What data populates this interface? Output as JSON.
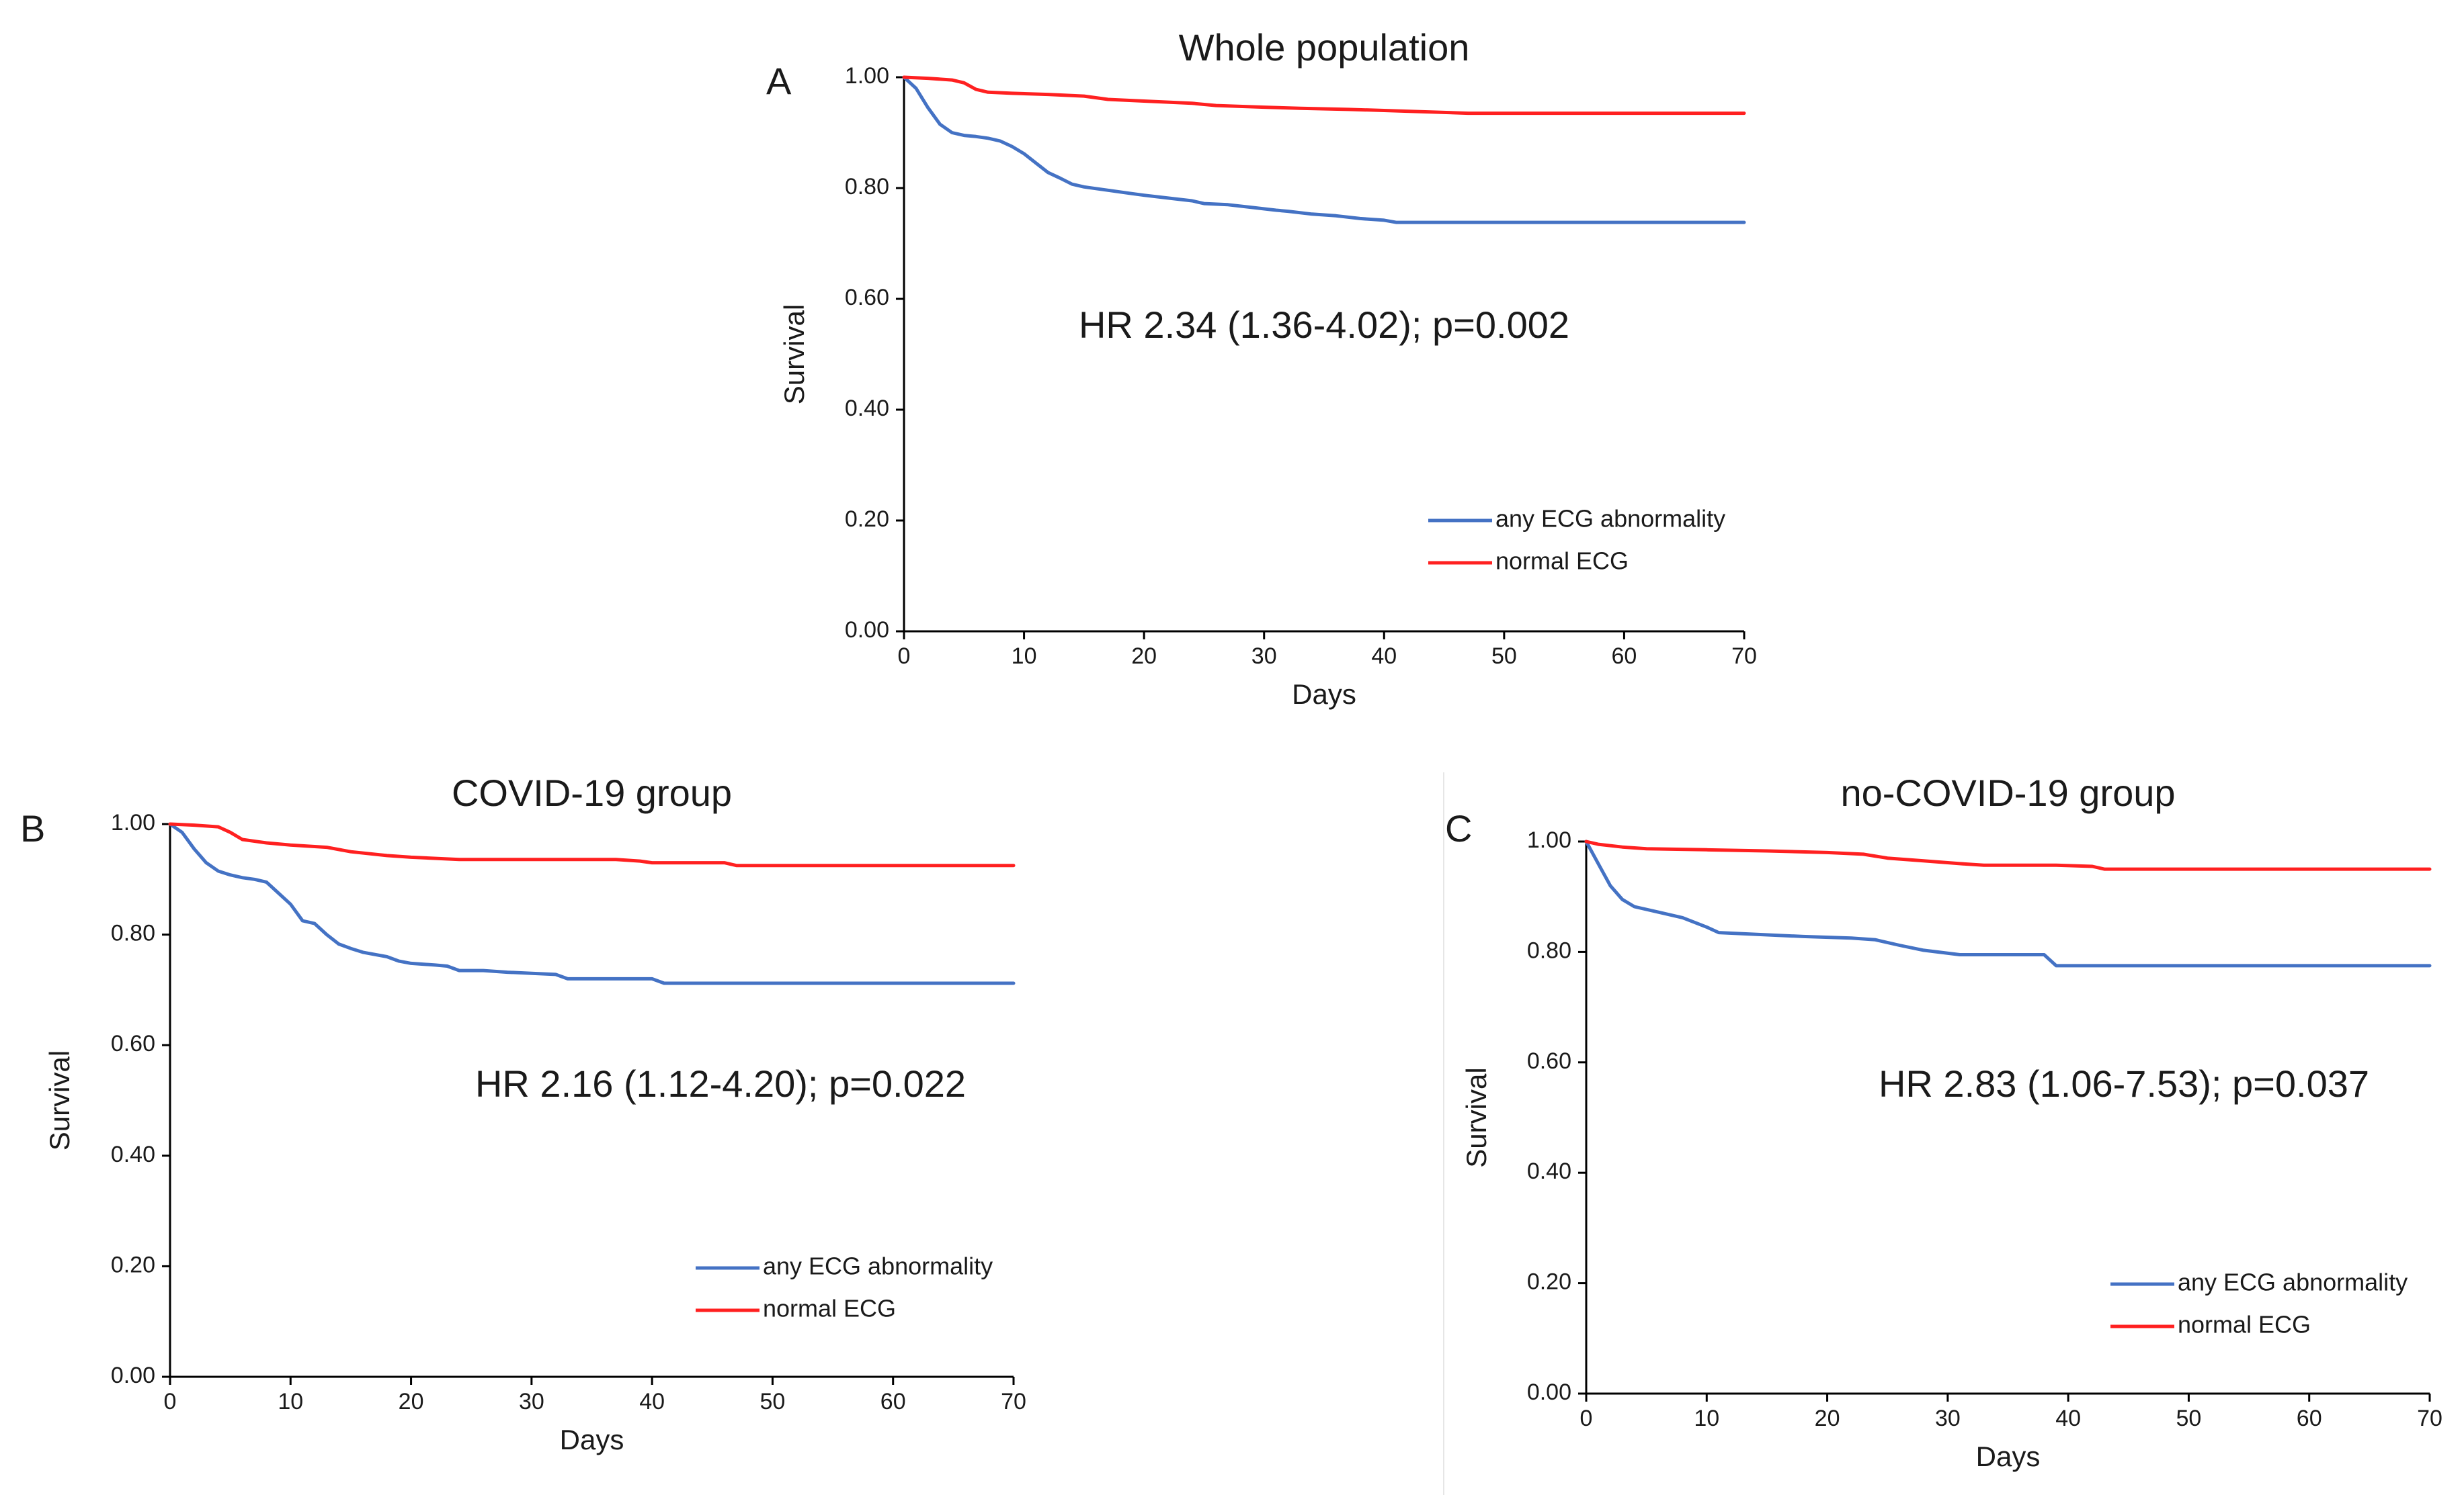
{
  "chart_data": [
    {
      "panel": "A",
      "type": "line",
      "title": "Whole population",
      "xlabel": "Days",
      "ylabel": "Survival",
      "xlim": [
        0,
        70
      ],
      "ylim": [
        0,
        1
      ],
      "xticks": [
        "0",
        "10",
        "20",
        "30",
        "40",
        "50",
        "60",
        "70"
      ],
      "yticks": [
        "0.00",
        "0.20",
        "0.40",
        "0.60",
        "0.80",
        "1.00"
      ],
      "annotation": "HR 2.34 (1.36-4.02); p=0.002",
      "legend_position": "bottom-right",
      "series": [
        {
          "name": "any ECG abnormality",
          "color": "#4472C4",
          "x": [
            0,
            1,
            2,
            3,
            4,
            5,
            6,
            7,
            8,
            9,
            10,
            11,
            12,
            13,
            14,
            15,
            16,
            17,
            18,
            19,
            20,
            22,
            24,
            25,
            27,
            29,
            31,
            32,
            34,
            36,
            38,
            40,
            41,
            43,
            45,
            48,
            50,
            55,
            60,
            65,
            70
          ],
          "y": [
            1.0,
            0.98,
            0.945,
            0.915,
            0.9,
            0.895,
            0.893,
            0.89,
            0.885,
            0.875,
            0.862,
            0.845,
            0.828,
            0.818,
            0.807,
            0.802,
            0.799,
            0.796,
            0.793,
            0.79,
            0.787,
            0.782,
            0.777,
            0.772,
            0.77,
            0.765,
            0.76,
            0.758,
            0.753,
            0.75,
            0.745,
            0.742,
            0.738,
            0.738,
            0.738,
            0.738,
            0.738,
            0.738,
            0.738,
            0.738,
            0.738
          ]
        },
        {
          "name": "normal ECG",
          "color": "#FF2020",
          "x": [
            0,
            2,
            4,
            5,
            6,
            7,
            9,
            12,
            15,
            17,
            20,
            24,
            26,
            30,
            33,
            37,
            40,
            43,
            47,
            50,
            55,
            60,
            65,
            70
          ],
          "y": [
            1.0,
            0.998,
            0.995,
            0.99,
            0.978,
            0.973,
            0.971,
            0.969,
            0.966,
            0.96,
            0.957,
            0.953,
            0.949,
            0.946,
            0.944,
            0.942,
            0.94,
            0.938,
            0.935,
            0.935,
            0.935,
            0.935,
            0.935,
            0.935
          ]
        }
      ]
    },
    {
      "panel": "B",
      "type": "line",
      "title": "COVID-19 group",
      "xlabel": "Days",
      "ylabel": "Survival",
      "xlim": [
        0,
        70
      ],
      "ylim": [
        0,
        1
      ],
      "xticks": [
        "0",
        "10",
        "20",
        "30",
        "40",
        "50",
        "60",
        "70"
      ],
      "yticks": [
        "0.00",
        "0.20",
        "0.40",
        "0.60",
        "0.80",
        "1.00"
      ],
      "annotation": "HR 2.16 (1.12-4.20); p=0.022",
      "legend_position": "bottom-right",
      "series": [
        {
          "name": "any ECG abnormality",
          "color": "#4472C4",
          "x": [
            0,
            1,
            2,
            3,
            4,
            5,
            6,
            7,
            8,
            9,
            10,
            11,
            12,
            13,
            14,
            15,
            16,
            18,
            19,
            20,
            22,
            23,
            24,
            26,
            28,
            30,
            32,
            33,
            35,
            38,
            40,
            41,
            43,
            45,
            50,
            55,
            60,
            65,
            70
          ],
          "y": [
            1.0,
            0.985,
            0.955,
            0.93,
            0.915,
            0.908,
            0.903,
            0.9,
            0.895,
            0.875,
            0.855,
            0.825,
            0.82,
            0.8,
            0.783,
            0.775,
            0.768,
            0.76,
            0.752,
            0.748,
            0.745,
            0.743,
            0.735,
            0.735,
            0.732,
            0.73,
            0.728,
            0.72,
            0.72,
            0.72,
            0.72,
            0.712,
            0.712,
            0.712,
            0.712,
            0.712,
            0.712,
            0.712,
            0.712
          ]
        },
        {
          "name": "normal ECG",
          "color": "#FF2020",
          "x": [
            0,
            2,
            4,
            5,
            6,
            8,
            10,
            13,
            15,
            18,
            20,
            24,
            27,
            32,
            37,
            39,
            40,
            42,
            44,
            46,
            47,
            50,
            55,
            60,
            65,
            70
          ],
          "y": [
            1.0,
            0.998,
            0.995,
            0.985,
            0.972,
            0.966,
            0.962,
            0.958,
            0.95,
            0.943,
            0.94,
            0.936,
            0.936,
            0.936,
            0.936,
            0.933,
            0.93,
            0.93,
            0.93,
            0.93,
            0.925,
            0.925,
            0.925,
            0.925,
            0.925,
            0.925
          ]
        }
      ]
    },
    {
      "panel": "C",
      "type": "line",
      "title": "no-COVID-19 group",
      "xlabel": "Days",
      "ylabel": "Survival",
      "xlim": [
        0,
        70
      ],
      "ylim": [
        0,
        1
      ],
      "xticks": [
        "0",
        "10",
        "20",
        "30",
        "40",
        "50",
        "60",
        "70"
      ],
      "yticks": [
        "0.00",
        "0.20",
        "0.40",
        "0.60",
        "0.80",
        "1.00"
      ],
      "annotation": "HR 2.83 (1.06-7.53); p=0.037",
      "legend_position": "bottom-right",
      "series": [
        {
          "name": "any ECG abnormality",
          "color": "#4472C4",
          "x": [
            0,
            1,
            2,
            3,
            4,
            6,
            8,
            10,
            11,
            14,
            18,
            22,
            24,
            26,
            28,
            31,
            34,
            38,
            39,
            42,
            45,
            50,
            55,
            60,
            65,
            70
          ],
          "y": [
            1.0,
            0.96,
            0.92,
            0.895,
            0.882,
            0.872,
            0.862,
            0.845,
            0.835,
            0.832,
            0.828,
            0.825,
            0.822,
            0.812,
            0.803,
            0.795,
            0.795,
            0.795,
            0.775,
            0.775,
            0.775,
            0.775,
            0.775,
            0.775,
            0.775,
            0.775
          ]
        },
        {
          "name": "normal ECG",
          "color": "#FF2020",
          "x": [
            0,
            1,
            3,
            5,
            10,
            15,
            20,
            23,
            25,
            28,
            31,
            33,
            36,
            39,
            42,
            43,
            45,
            50,
            55,
            60,
            65,
            70
          ],
          "y": [
            1.0,
            0.995,
            0.99,
            0.987,
            0.985,
            0.983,
            0.98,
            0.977,
            0.97,
            0.965,
            0.96,
            0.957,
            0.957,
            0.957,
            0.955,
            0.95,
            0.95,
            0.95,
            0.95,
            0.95,
            0.95,
            0.95
          ]
        }
      ]
    }
  ]
}
